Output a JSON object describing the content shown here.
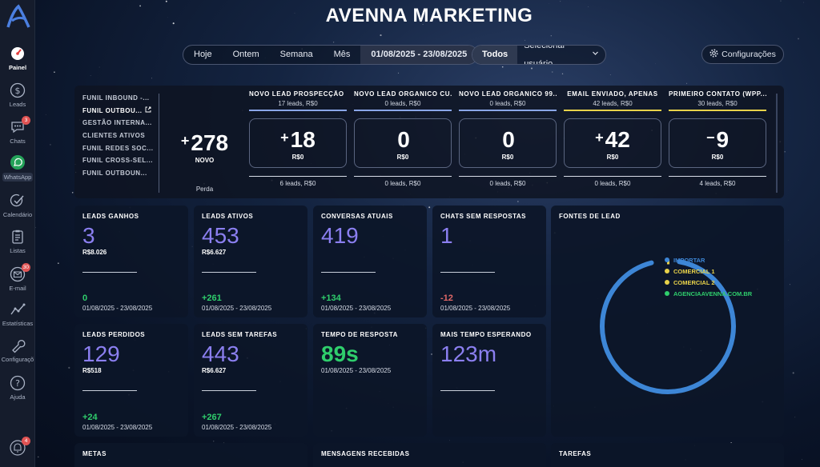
{
  "app": {
    "title": "AVENNA MARKETING"
  },
  "sidebar": {
    "items": [
      {
        "label": "Painel",
        "icon": "dashboard-icon",
        "active": true
      },
      {
        "label": "Leads",
        "icon": "dollar-icon"
      },
      {
        "label": "Chats",
        "icon": "chat-icon",
        "badge": "3"
      },
      {
        "label": "WhatsApp",
        "icon": "whatsapp-icon"
      },
      {
        "label": "Calendário",
        "icon": "check-calendar-icon"
      },
      {
        "label": "Listas",
        "icon": "list-icon"
      },
      {
        "label": "E-mail",
        "icon": "mail-icon",
        "badge": "30"
      },
      {
        "label": "Estatísticas",
        "icon": "stats-icon"
      },
      {
        "label": "Configuraçõ",
        "icon": "wrench-icon"
      },
      {
        "label": "Ajuda",
        "icon": "help-icon"
      },
      {
        "label": "",
        "icon": "bell-icon",
        "badge": "4"
      }
    ]
  },
  "filters": {
    "ranges": [
      "Hoje",
      "Ontem",
      "Semana",
      "Mês"
    ],
    "date_range": "01/08/2025 - 23/08/2025",
    "users_all": "Todos",
    "user_select": "Selecionar usuário",
    "settings": "Configurações"
  },
  "funnels": [
    "FUNIL INBOUND -...",
    "FUNIL OUTBOU...",
    "GESTÃO INTERNA...",
    "CLIENTES ATIVOS",
    "FUNIL REDES SOC...",
    "FUNIL CROSS-SEL...",
    "FUNIL OUTBOUN..."
  ],
  "novo": {
    "sign": "+",
    "value": "278",
    "label": "NOVO",
    "loss": "Perda"
  },
  "stages": [
    {
      "name": "NOVO LEAD PROSPECÇÃO ...",
      "sub": "17 leads, R$0",
      "color": "#8aa6e8",
      "sign": "+",
      "value": "18",
      "revenue": "R$0",
      "bottom": "6 leads, R$0"
    },
    {
      "name": "NOVO LEAD ORGANICO CU...",
      "sub": "0 leads, R$0",
      "color": "#8aa6e8",
      "sign": "",
      "value": "0",
      "revenue": "R$0",
      "bottom": "0 leads, R$0"
    },
    {
      "name": "NOVO LEAD ORGANICO 99...",
      "sub": "0 leads, R$0",
      "color": "#8aa6e8",
      "sign": "",
      "value": "0",
      "revenue": "R$0",
      "bottom": "0 leads, R$0"
    },
    {
      "name": "EMAIL ENVIADO, APENAS",
      "sub": "42 leads, R$0",
      "color": "#e8d24a",
      "sign": "+",
      "value": "42",
      "revenue": "R$0",
      "bottom": "0 leads, R$0"
    },
    {
      "name": "PRIMEIRO CONTATO (WPP...",
      "sub": "30 leads, R$0",
      "color": "#e8d24a",
      "sign": "−",
      "value": "9",
      "revenue": "R$0",
      "bottom": "4 leads, R$0"
    }
  ],
  "cards": {
    "leads_ganhos": {
      "title": "LEADS GANHOS",
      "value": "3",
      "money": "R$8.026",
      "delta": "0",
      "date": "01/08/2025 - 23/08/2025"
    },
    "leads_ativos": {
      "title": "LEADS ATIVOS",
      "value": "453",
      "money": "R$6.627",
      "delta": "+261",
      "date": "01/08/2025 - 23/08/2025"
    },
    "conversas_atuais": {
      "title": "CONVERSAS ATUAIS",
      "value": "419",
      "delta": "+134",
      "date": "01/08/2025 - 23/08/2025"
    },
    "chats_sem_resposta": {
      "title": "CHATS SEM RESPOSTAS",
      "value": "1",
      "delta": "-12",
      "date": "01/08/2025 - 23/08/2025"
    },
    "leads_perdidos": {
      "title": "LEADS PERDIDOS",
      "value": "129",
      "money": "R$518",
      "delta": "+24",
      "date": "01/08/2025 - 23/08/2025"
    },
    "leads_sem_tarefas": {
      "title": "LEADS SEM TAREFAS",
      "value": "443",
      "money": "R$6.627",
      "delta": "+267",
      "date": "01/08/2025 - 23/08/2025"
    },
    "tempo_resposta": {
      "title": "TEMPO DE RESPOSTA",
      "value": "89s",
      "date": "01/08/2025 - 23/08/2025"
    },
    "mais_tempo": {
      "title": "MAIS TEMPO ESPERANDO",
      "value": "123m"
    },
    "fontes": {
      "title": "FONTES DE LEAD",
      "legend": [
        {
          "label": "IMPORTAR",
          "color": "#3d86d6"
        },
        {
          "label": "COMERCIAL 1",
          "color": "#e8d24a"
        },
        {
          "label": "COMERCIAL 2",
          "color": "#e8d24a"
        },
        {
          "label": "AGENCIAAVENNA.COM.BR",
          "color": "#2fce6c"
        }
      ]
    },
    "metas": {
      "title": "METAS"
    },
    "mensagens": {
      "title": "MENSAGENS RECEBIDAS"
    },
    "tarefas": {
      "title": "TAREFAS"
    }
  }
}
